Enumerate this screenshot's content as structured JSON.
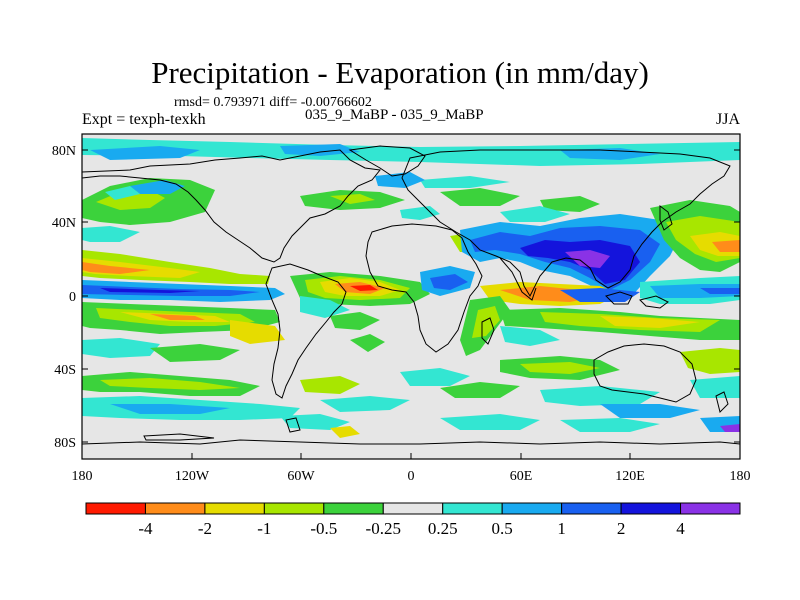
{
  "title": "Precipitation - Evaporation (in mm/day)",
  "stats": "rmsd= 0.793971  diff= -0.00766602",
  "experiment": "Expt = texph-texkh",
  "runs": "035_9_MaBP - 035_9_MaBP",
  "season": "JJA",
  "lat_ticks": [
    "80N",
    "40N",
    "0",
    "40S",
    "80S"
  ],
  "lon_ticks": [
    "180",
    "120W",
    "60W",
    "0",
    "60E",
    "120E",
    "180"
  ],
  "colorbar": {
    "colors": [
      "#ff1a00",
      "#ff8c1a",
      "#e6dc00",
      "#a8e600",
      "#3cd23c",
      "#e6e6e6",
      "#33e6d2",
      "#19aaf0",
      "#1960f0",
      "#1414dc",
      "#8a32e6"
    ],
    "labels": [
      "-4",
      "-2",
      "-1",
      "-0.5",
      "-0.25",
      "0.25",
      "0.5",
      "1",
      "2",
      "4"
    ]
  }
}
